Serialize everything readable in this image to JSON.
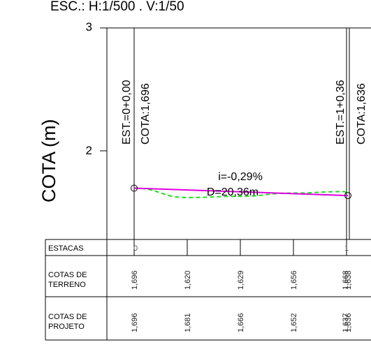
{
  "drawing": {
    "scale_note": "ESC.: H:1/500 .  V:1/50",
    "axis_label": "COTA (m)",
    "y_ticks": [
      "3",
      "2"
    ],
    "y_range": [
      1,
      3
    ],
    "stations": [
      {
        "est": "EST.=0+0,00",
        "cota": "COTA:1,696",
        "station_label": "0"
      },
      {
        "est": "EST.=1+0,36",
        "cota": "COTA:1,636",
        "station_label": "1"
      }
    ],
    "slope_label": "i=-0,29%",
    "distance_label": "D=20,36m",
    "colors": {
      "project_line": "#e000e0",
      "terrain_line": "#22dd22",
      "grid": "#000000"
    }
  },
  "table": {
    "row_labels": {
      "stations": "ESTACAS",
      "terrain_1": "COTAS DE",
      "terrain_2": "TERRENO",
      "project_1": "COTAS DE",
      "project_2": "PROJETO"
    },
    "terrain_values": [
      "1,696",
      "1,620",
      "1,629",
      "1,656",
      "1,668",
      "1,638"
    ],
    "project_values": [
      "1,696",
      "1,681",
      "1,666",
      "1,652",
      "1,637",
      "1,636"
    ]
  },
  "chart_data": {
    "type": "line",
    "xlabel": "",
    "ylabel": "COTA (m)",
    "ylim": [
      1,
      3
    ],
    "x": [
      0,
      5,
      10,
      15,
      20,
      20.36
    ],
    "series": [
      {
        "name": "",
        "values": [
          1.696,
          1.681,
          1.666,
          1.652,
          1.637,
          1.636
        ]
      },
      {
        "name": "",
        "values": [
          1.696,
          1.62,
          1.629,
          1.656,
          1.668,
          1.638
        ]
      }
    ]
  }
}
